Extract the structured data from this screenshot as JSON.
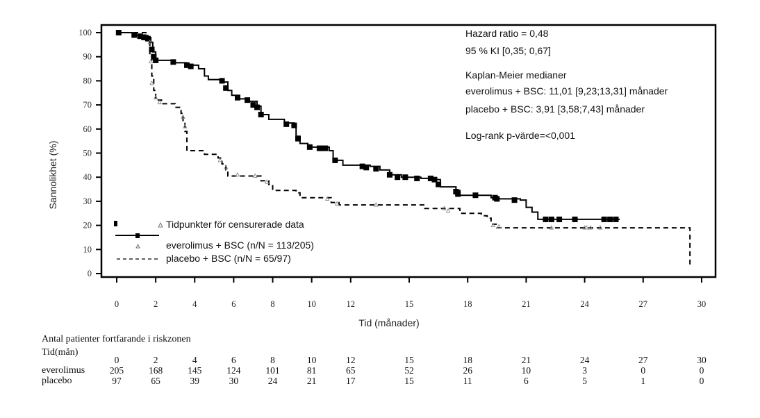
{
  "chart_data": {
    "type": "line",
    "subtype": "kaplan-meier",
    "title": "",
    "xlabel": "Tid (månader)",
    "ylabel": "Sannolikhet (%)",
    "xlim": [
      0,
      30
    ],
    "ylim": [
      0,
      100
    ],
    "xticks": [
      0,
      2,
      4,
      6,
      8,
      10,
      12,
      15,
      18,
      21,
      24,
      27,
      30
    ],
    "yticks": [
      0,
      10,
      20,
      30,
      40,
      50,
      60,
      70,
      80,
      90,
      100
    ],
    "grid": false,
    "series": [
      {
        "name": "everolimus + BSC (n/N = 113/205)",
        "style": "solid",
        "censor_marker": "square",
        "steps": [
          [
            0,
            100
          ],
          [
            0.8,
            99
          ],
          [
            1.5,
            98
          ],
          [
            1.75,
            96
          ],
          [
            1.85,
            92
          ],
          [
            2.0,
            88.5
          ],
          [
            3.0,
            87.5
          ],
          [
            3.6,
            86.5
          ],
          [
            4.2,
            85
          ],
          [
            4.5,
            82
          ],
          [
            4.7,
            80.5
          ],
          [
            5.5,
            79.5
          ],
          [
            5.7,
            76
          ],
          [
            5.9,
            74
          ],
          [
            6.3,
            72.5
          ],
          [
            6.8,
            71.5
          ],
          [
            7.2,
            69.5
          ],
          [
            7.4,
            66
          ],
          [
            7.8,
            64
          ],
          [
            8.6,
            62.5
          ],
          [
            9.1,
            61.5
          ],
          [
            9.2,
            57
          ],
          [
            9.4,
            54
          ],
          [
            9.8,
            52.5
          ],
          [
            10.9,
            51
          ],
          [
            11.1,
            47
          ],
          [
            11.6,
            45
          ],
          [
            13.0,
            44.5
          ],
          [
            13.5,
            43
          ],
          [
            14.0,
            41
          ],
          [
            14.6,
            40
          ],
          [
            15.6,
            39.5
          ],
          [
            16.4,
            39
          ],
          [
            16.6,
            36
          ],
          [
            17.4,
            34.5
          ],
          [
            17.6,
            32.5
          ],
          [
            19.2,
            31.5
          ],
          [
            19.5,
            31
          ],
          [
            20.7,
            30.5
          ],
          [
            21.0,
            27.5
          ],
          [
            21.3,
            25.5
          ],
          [
            21.6,
            22.5
          ],
          [
            25.8,
            22.5
          ]
        ],
        "censored": [
          [
            0.1,
            100
          ],
          [
            0.9,
            99
          ],
          [
            1.2,
            98.5
          ],
          [
            1.4,
            98
          ],
          [
            1.6,
            97.5
          ],
          [
            1.8,
            93
          ],
          [
            1.9,
            90
          ],
          [
            2.0,
            88.5
          ],
          [
            2.9,
            87.8
          ],
          [
            3.6,
            86.5
          ],
          [
            3.8,
            86
          ],
          [
            5.4,
            80
          ],
          [
            5.6,
            77
          ],
          [
            6.2,
            73
          ],
          [
            6.7,
            72
          ],
          [
            7.0,
            70
          ],
          [
            7.2,
            69
          ],
          [
            7.4,
            66
          ],
          [
            8.7,
            62
          ],
          [
            9.1,
            61.5
          ],
          [
            9.3,
            56
          ],
          [
            9.9,
            52.5
          ],
          [
            10.4,
            52
          ],
          [
            10.5,
            52
          ],
          [
            10.7,
            52
          ],
          [
            11.2,
            47
          ],
          [
            12.6,
            44.5
          ],
          [
            12.8,
            44
          ],
          [
            13.3,
            43.5
          ],
          [
            14.0,
            41
          ],
          [
            14.4,
            40
          ],
          [
            14.8,
            40
          ],
          [
            15.4,
            39.5
          ],
          [
            16.1,
            39.5
          ],
          [
            16.3,
            39
          ],
          [
            16.5,
            37
          ],
          [
            17.4,
            34
          ],
          [
            17.5,
            33
          ],
          [
            18.4,
            32.5
          ],
          [
            19.4,
            31.5
          ],
          [
            19.5,
            31
          ],
          [
            20.4,
            30.5
          ],
          [
            22.0,
            22.5
          ],
          [
            22.3,
            22.5
          ],
          [
            22.7,
            22.5
          ],
          [
            23.5,
            22.5
          ],
          [
            25.0,
            22.5
          ],
          [
            25.3,
            22.5
          ],
          [
            25.6,
            22.5
          ]
        ]
      },
      {
        "name": "placebo + BSC (n/N = 65/97)",
        "style": "dashed",
        "censor_marker": "triangle",
        "steps": [
          [
            0,
            100
          ],
          [
            1.6,
            98
          ],
          [
            1.7,
            90
          ],
          [
            1.8,
            82
          ],
          [
            1.9,
            76
          ],
          [
            2.0,
            72
          ],
          [
            2.3,
            70.5
          ],
          [
            3.0,
            69
          ],
          [
            3.3,
            66.5
          ],
          [
            3.4,
            63
          ],
          [
            3.5,
            59
          ],
          [
            3.6,
            51
          ],
          [
            4.5,
            49.5
          ],
          [
            5.2,
            48
          ],
          [
            5.4,
            45.5
          ],
          [
            5.6,
            43
          ],
          [
            5.7,
            40.5
          ],
          [
            7.2,
            40.5
          ],
          [
            7.4,
            38.5
          ],
          [
            7.8,
            37
          ],
          [
            8.0,
            34.5
          ],
          [
            9.2,
            33.5
          ],
          [
            9.4,
            31.5
          ],
          [
            10.8,
            31.5
          ],
          [
            11.0,
            29.5
          ],
          [
            11.4,
            28.5
          ],
          [
            15.5,
            28.5
          ],
          [
            15.8,
            27
          ],
          [
            17.4,
            27
          ],
          [
            17.6,
            25
          ],
          [
            18.7,
            24
          ],
          [
            19.0,
            23
          ],
          [
            19.2,
            20.5
          ],
          [
            19.5,
            19
          ],
          [
            29.4,
            19
          ],
          [
            29.4,
            3
          ]
        ],
        "censored": [
          [
            1.7,
            96
          ],
          [
            1.75,
            88
          ],
          [
            1.8,
            79
          ],
          [
            2.0,
            73
          ],
          [
            2.2,
            71
          ],
          [
            3.4,
            65
          ],
          [
            3.5,
            61
          ],
          [
            5.3,
            47
          ],
          [
            5.6,
            44
          ],
          [
            6.2,
            41
          ],
          [
            7.1,
            40.5
          ],
          [
            7.7,
            38
          ],
          [
            10.8,
            31
          ],
          [
            11.3,
            29
          ],
          [
            13.3,
            28.5
          ],
          [
            16.8,
            27
          ],
          [
            17.0,
            26
          ],
          [
            19.3,
            20
          ],
          [
            19.6,
            19.5
          ],
          [
            22.3,
            19
          ],
          [
            24.0,
            19
          ],
          [
            24.1,
            19
          ],
          [
            24.3,
            19
          ],
          [
            24.8,
            19
          ]
        ]
      }
    ],
    "annotations": [
      "Hazard ratio = 0,48",
      "95 % KI [0,35; 0,67]",
      "Kaplan-Meier medianer",
      "everolimus + BSC: 11,01 [9,23;13,31] månader",
      "placebo + BSC: 3,91 [3,58;7,43] månader",
      "Log-rank p-värde=<0,001"
    ],
    "legend": {
      "placement": "bottom-left",
      "censor_label": "Tidpunkter för censurerade data",
      "entries": [
        "everolimus + BSC (n/N = 113/205)",
        "placebo + BSC (n/N = 65/97)"
      ]
    }
  },
  "risk_table": {
    "title": "Antal patienter fortfarande i riskzonen",
    "time_label": "Tid(mån)",
    "times": [
      "0",
      "2",
      "4",
      "6",
      "8",
      "10",
      "12",
      "15",
      "18",
      "21",
      "24",
      "27",
      "30"
    ],
    "rows": [
      {
        "label": "everolimus",
        "values": [
          "205",
          "168",
          "145",
          "124",
          "101",
          "81",
          "65",
          "52",
          "26",
          "10",
          "3",
          "0",
          "0"
        ]
      },
      {
        "label": "placebo",
        "values": [
          "97",
          "65",
          "39",
          "30",
          "24",
          "21",
          "17",
          "15",
          "11",
          "6",
          "5",
          "1",
          "0"
        ]
      }
    ]
  }
}
